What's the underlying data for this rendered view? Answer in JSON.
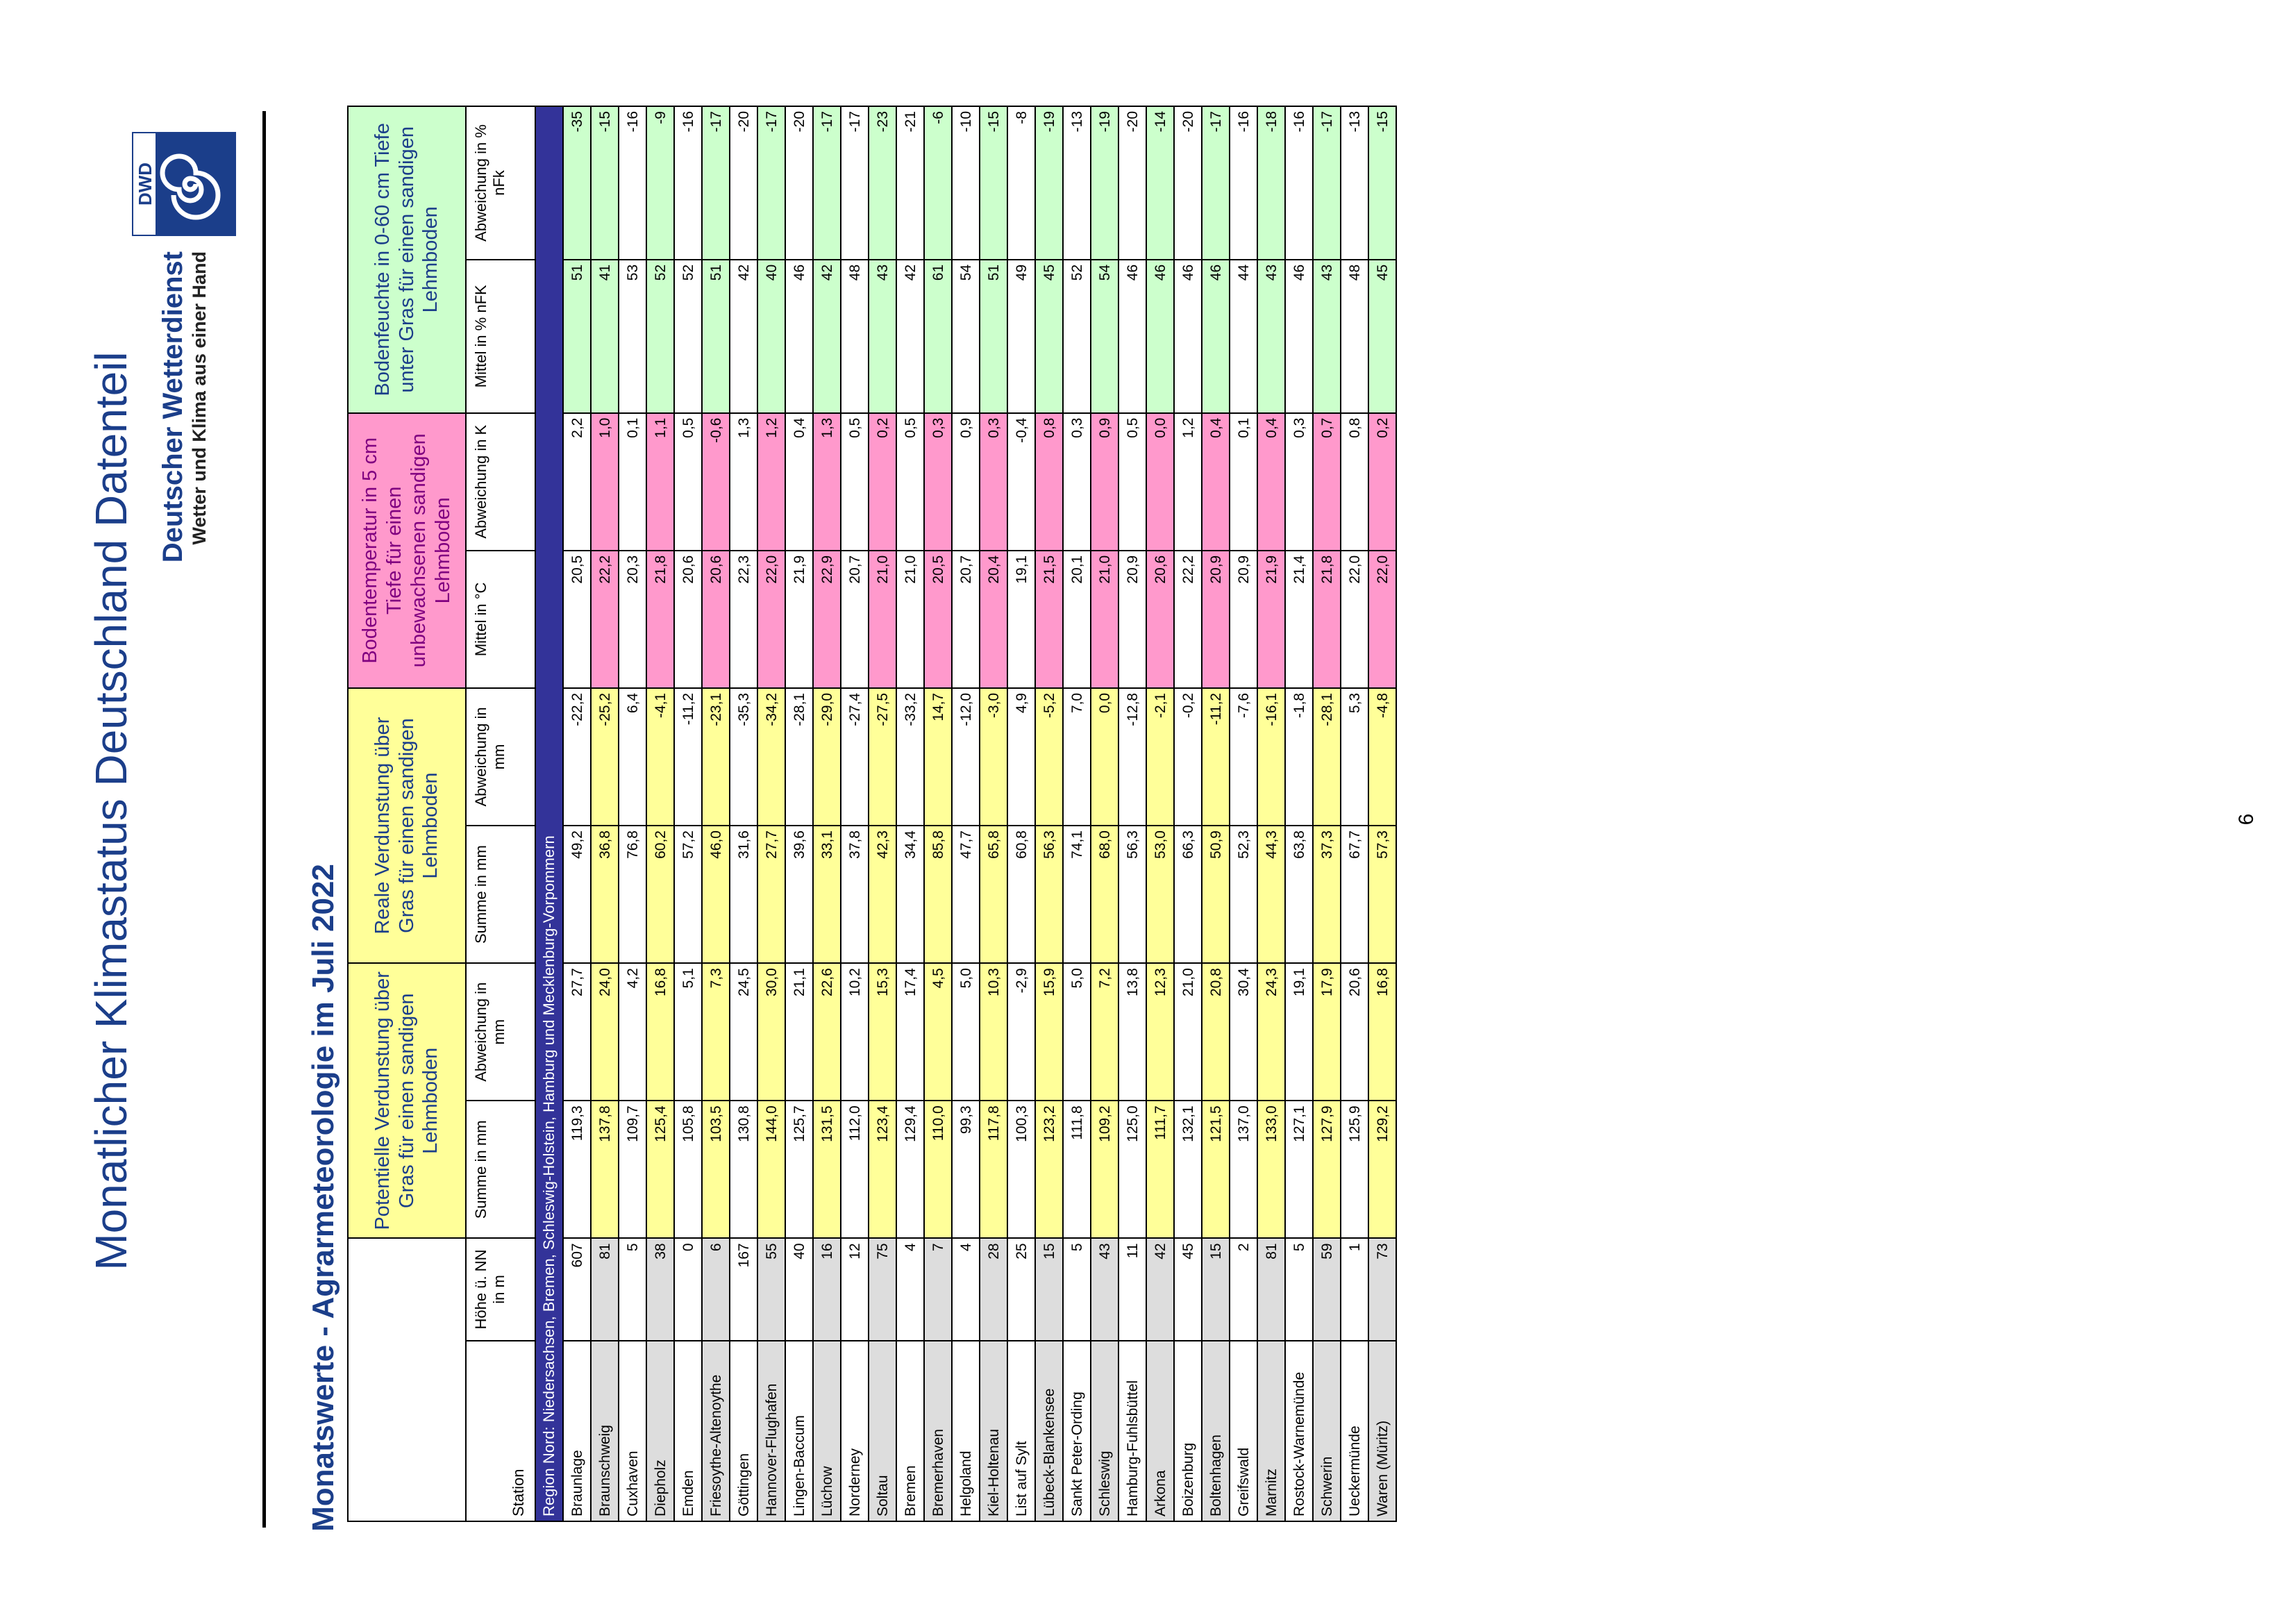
{
  "page": {
    "title": "Monatlicher Klimastatus Deutschland Datenteil",
    "section_title": "Monatswerte - Agrarmeteorologie im Juli 2022",
    "page_number": "6"
  },
  "logo": {
    "mark": "DWD",
    "name": "Deutscher Wetterdienst",
    "slogan": "Wetter und Klima aus einer Hand",
    "icon": "dwd-swirl-icon",
    "color": "#1b3e8a"
  },
  "table": {
    "groups": {
      "pot": "Potentielle Verdunstung über Gras für einen sandigen Lehmboden",
      "real": "Reale Verdunstung über Gras für einen sandigen Lehmboden",
      "temp": "Bodentemperatur in 5 cm Tiefe für einen unbewachsenen sandigen Lehmboden",
      "moist": "Bodenfeuchte in 0-60 cm Tiefe unter Gras für einen sandigen Lehmboden"
    },
    "columns": {
      "station": "Station",
      "hoehe": "Höhe ü. NN in m",
      "pot_sum": "Summe in mm",
      "pot_dev": "Abweichung in mm",
      "real_sum": "Summe in mm",
      "real_dev": "Abweichung in mm",
      "temp_mean": "Mittel in °C",
      "temp_dev": "Abweichung in K",
      "moist_mean": "Mittel in % nFK",
      "moist_dev": "Abweichung in % nFk"
    },
    "region": "Region Nord: Niedersachsen, Bremen, Schleswig-Holstein, Hamburg und Mecklenburg-Vorpommern",
    "colors": {
      "yellow": "#ffff99",
      "pink": "#ff99cc",
      "green": "#ccffcc",
      "gray": "#dddddd",
      "region": "#333399"
    },
    "rows": [
      {
        "station": "Braunlage",
        "h": "607",
        "hl": false,
        "ps": "119,3",
        "pd": "27,7",
        "rs": "49,2",
        "rd": "-22,2",
        "tm": "20,5",
        "td": "2,2",
        "mm": "51",
        "md": "-35",
        "c": [
          "w",
          "w",
          "w",
          "w",
          "w",
          "w",
          "g",
          "g"
        ]
      },
      {
        "station": "Braunschweig",
        "h": "81",
        "hl": true,
        "ps": "137,8",
        "pd": "24,0",
        "rs": "36,8",
        "rd": "-25,2",
        "tm": "22,2",
        "td": "1,0",
        "mm": "41",
        "md": "-15",
        "c": [
          "y",
          "y",
          "y",
          "y",
          "p",
          "p",
          "g",
          "g"
        ]
      },
      {
        "station": "Cuxhaven",
        "h": "5",
        "hl": false,
        "ps": "109,7",
        "pd": "4,2",
        "rs": "76,8",
        "rd": "6,4",
        "tm": "20,3",
        "td": "0,1",
        "mm": "53",
        "md": "-16",
        "c": [
          "w",
          "w",
          "w",
          "w",
          "w",
          "w",
          "w",
          "w"
        ]
      },
      {
        "station": "Diepholz",
        "h": "38",
        "hl": true,
        "ps": "125,4",
        "pd": "16,8",
        "rs": "60,2",
        "rd": "-4,1",
        "tm": "21,8",
        "td": "1,1",
        "mm": "52",
        "md": "-9",
        "c": [
          "y",
          "y",
          "y",
          "y",
          "p",
          "p",
          "g",
          "g"
        ]
      },
      {
        "station": "Emden",
        "h": "0",
        "hl": false,
        "ps": "105,8",
        "pd": "5,1",
        "rs": "57,2",
        "rd": "-11,2",
        "tm": "20,6",
        "td": "0,5",
        "mm": "52",
        "md": "-16",
        "c": [
          "w",
          "w",
          "w",
          "w",
          "w",
          "w",
          "w",
          "w"
        ]
      },
      {
        "station": "Friesoythe-Altenoythe",
        "h": "6",
        "hl": true,
        "ps": "103,5",
        "pd": "7,3",
        "rs": "46,0",
        "rd": "-23,1",
        "tm": "20,6",
        "td": "-0,6",
        "mm": "51",
        "md": "-17",
        "c": [
          "y",
          "y",
          "y",
          "y",
          "p",
          "p",
          "g",
          "g"
        ]
      },
      {
        "station": "Göttingen",
        "h": "167",
        "hl": false,
        "ps": "130,8",
        "pd": "24,5",
        "rs": "31,6",
        "rd": "-35,3",
        "tm": "22,3",
        "td": "1,3",
        "mm": "42",
        "md": "-20",
        "c": [
          "w",
          "w",
          "w",
          "w",
          "w",
          "w",
          "w",
          "w"
        ]
      },
      {
        "station": "Hannover-Flughafen",
        "h": "55",
        "hl": true,
        "ps": "144,0",
        "pd": "30,0",
        "rs": "27,7",
        "rd": "-34,2",
        "tm": "22,0",
        "td": "1,2",
        "mm": "40",
        "md": "-17",
        "c": [
          "y",
          "y",
          "y",
          "y",
          "p",
          "p",
          "g",
          "g"
        ]
      },
      {
        "station": "Lingen-Baccum",
        "h": "40",
        "hl": false,
        "ps": "125,7",
        "pd": "21,1",
        "rs": "39,6",
        "rd": "-28,1",
        "tm": "21,9",
        "td": "0,4",
        "mm": "46",
        "md": "-20",
        "c": [
          "w",
          "w",
          "w",
          "w",
          "w",
          "w",
          "w",
          "w"
        ]
      },
      {
        "station": "Lüchow",
        "h": "16",
        "hl": true,
        "ps": "131,5",
        "pd": "22,6",
        "rs": "33,1",
        "rd": "-29,0",
        "tm": "22,9",
        "td": "1,3",
        "mm": "42",
        "md": "-17",
        "c": [
          "y",
          "y",
          "y",
          "y",
          "p",
          "p",
          "g",
          "g"
        ]
      },
      {
        "station": "Norderney",
        "h": "12",
        "hl": false,
        "ps": "112,0",
        "pd": "10,2",
        "rs": "37,8",
        "rd": "-27,4",
        "tm": "20,7",
        "td": "0,5",
        "mm": "48",
        "md": "-17",
        "c": [
          "w",
          "w",
          "w",
          "w",
          "w",
          "w",
          "w",
          "w"
        ]
      },
      {
        "station": "Soltau",
        "h": "75",
        "hl": true,
        "ps": "123,4",
        "pd": "15,3",
        "rs": "42,3",
        "rd": "-27,5",
        "tm": "21,0",
        "td": "0,2",
        "mm": "43",
        "md": "-23",
        "c": [
          "y",
          "y",
          "y",
          "y",
          "p",
          "p",
          "g",
          "g"
        ]
      },
      {
        "station": "Bremen",
        "h": "4",
        "hl": false,
        "ps": "129,4",
        "pd": "17,4",
        "rs": "34,4",
        "rd": "-33,2",
        "tm": "21,0",
        "td": "0,5",
        "mm": "42",
        "md": "-21",
        "c": [
          "w",
          "w",
          "w",
          "w",
          "w",
          "w",
          "w",
          "w"
        ]
      },
      {
        "station": "Bremerhaven",
        "h": "7",
        "hl": true,
        "ps": "110,0",
        "pd": "4,5",
        "rs": "85,8",
        "rd": "14,7",
        "tm": "20,5",
        "td": "0,3",
        "mm": "61",
        "md": "-6",
        "c": [
          "y",
          "y",
          "y",
          "y",
          "p",
          "p",
          "g",
          "g"
        ]
      },
      {
        "station": "Helgoland",
        "h": "4",
        "hl": false,
        "ps": "99,3",
        "pd": "5,0",
        "rs": "47,7",
        "rd": "-12,0",
        "tm": "20,7",
        "td": "0,9",
        "mm": "54",
        "md": "-10",
        "c": [
          "w",
          "w",
          "w",
          "w",
          "w",
          "w",
          "w",
          "w"
        ]
      },
      {
        "station": "Kiel-Holtenau",
        "h": "28",
        "hl": true,
        "ps": "117,8",
        "pd": "10,3",
        "rs": "65,8",
        "rd": "-3,0",
        "tm": "20,4",
        "td": "0,3",
        "mm": "51",
        "md": "-15",
        "c": [
          "y",
          "y",
          "y",
          "y",
          "p",
          "p",
          "g",
          "g"
        ]
      },
      {
        "station": "List auf Sylt",
        "h": "25",
        "hl": false,
        "ps": "100,3",
        "pd": "-2,9",
        "rs": "60,8",
        "rd": "4,9",
        "tm": "19,1",
        "td": "-0,4",
        "mm": "49",
        "md": "-8",
        "c": [
          "w",
          "w",
          "w",
          "w",
          "w",
          "w",
          "w",
          "w"
        ]
      },
      {
        "station": "Lübeck-Blankensee",
        "h": "15",
        "hl": true,
        "ps": "123,2",
        "pd": "15,9",
        "rs": "56,3",
        "rd": "-5,2",
        "tm": "21,5",
        "td": "0,8",
        "mm": "45",
        "md": "-19",
        "c": [
          "y",
          "y",
          "y",
          "y",
          "p",
          "p",
          "g",
          "g"
        ]
      },
      {
        "station": "Sankt Peter-Ording",
        "h": "5",
        "hl": false,
        "ps": "111,8",
        "pd": "5,0",
        "rs": "74,1",
        "rd": "7,0",
        "tm": "20,1",
        "td": "0,3",
        "mm": "52",
        "md": "-13",
        "c": [
          "w",
          "w",
          "w",
          "w",
          "w",
          "w",
          "w",
          "w"
        ]
      },
      {
        "station": "Schleswig",
        "h": "43",
        "hl": true,
        "ps": "109,2",
        "pd": "7,2",
        "rs": "68,0",
        "rd": "0,0",
        "tm": "21,0",
        "td": "0,9",
        "mm": "54",
        "md": "-19",
        "c": [
          "y",
          "y",
          "y",
          "y",
          "p",
          "p",
          "g",
          "g"
        ]
      },
      {
        "station": "Hamburg-Fuhlsbüttel",
        "h": "11",
        "hl": false,
        "ps": "125,0",
        "pd": "13,8",
        "rs": "56,3",
        "rd": "-12,8",
        "tm": "20,9",
        "td": "0,5",
        "mm": "46",
        "md": "-20",
        "c": [
          "w",
          "w",
          "w",
          "w",
          "w",
          "w",
          "w",
          "w"
        ]
      },
      {
        "station": "Arkona",
        "h": "42",
        "hl": true,
        "ps": "111,7",
        "pd": "12,3",
        "rs": "53,0",
        "rd": "-2,1",
        "tm": "20,6",
        "td": "0,0",
        "mm": "46",
        "md": "-14",
        "c": [
          "y",
          "y",
          "y",
          "y",
          "p",
          "p",
          "g",
          "g"
        ]
      },
      {
        "station": "Boizenburg",
        "h": "45",
        "hl": false,
        "ps": "132,1",
        "pd": "21,0",
        "rs": "66,3",
        "rd": "-0,2",
        "tm": "22,2",
        "td": "1,2",
        "mm": "46",
        "md": "-20",
        "c": [
          "w",
          "w",
          "w",
          "w",
          "w",
          "w",
          "w",
          "w"
        ]
      },
      {
        "station": "Boltenhagen",
        "h": "15",
        "hl": true,
        "ps": "121,5",
        "pd": "20,8",
        "rs": "50,9",
        "rd": "-11,2",
        "tm": "20,9",
        "td": "0,4",
        "mm": "46",
        "md": "-17",
        "c": [
          "y",
          "y",
          "y",
          "y",
          "p",
          "p",
          "g",
          "g"
        ]
      },
      {
        "station": "Greifswald",
        "h": "2",
        "hl": false,
        "ps": "137,0",
        "pd": "30,4",
        "rs": "52,3",
        "rd": "-7,6",
        "tm": "20,9",
        "td": "0,1",
        "mm": "44",
        "md": "-16",
        "c": [
          "w",
          "w",
          "w",
          "w",
          "w",
          "w",
          "w",
          "w"
        ]
      },
      {
        "station": "Marnitz",
        "h": "81",
        "hl": true,
        "ps": "133,0",
        "pd": "24,3",
        "rs": "44,3",
        "rd": "-16,1",
        "tm": "21,9",
        "td": "0,4",
        "mm": "43",
        "md": "-18",
        "c": [
          "y",
          "y",
          "y",
          "y",
          "p",
          "p",
          "g",
          "g"
        ]
      },
      {
        "station": "Rostock-Warnemünde",
        "h": "5",
        "hl": false,
        "ps": "127,1",
        "pd": "19,1",
        "rs": "63,8",
        "rd": "-1,8",
        "tm": "21,4",
        "td": "0,3",
        "mm": "46",
        "md": "-16",
        "c": [
          "w",
          "w",
          "w",
          "w",
          "w",
          "w",
          "w",
          "w"
        ]
      },
      {
        "station": "Schwerin",
        "h": "59",
        "hl": true,
        "ps": "127,9",
        "pd": "17,9",
        "rs": "37,3",
        "rd": "-28,1",
        "tm": "21,8",
        "td": "0,7",
        "mm": "43",
        "md": "-17",
        "c": [
          "y",
          "y",
          "y",
          "y",
          "p",
          "p",
          "g",
          "g"
        ]
      },
      {
        "station": "Ueckermünde",
        "h": "1",
        "hl": false,
        "ps": "125,9",
        "pd": "20,6",
        "rs": "67,7",
        "rd": "5,3",
        "tm": "22,0",
        "td": "0,8",
        "mm": "48",
        "md": "-13",
        "c": [
          "w",
          "w",
          "w",
          "w",
          "w",
          "w",
          "w",
          "w"
        ]
      },
      {
        "station": "Waren (Müritz)",
        "h": "73",
        "hl": true,
        "ps": "129,2",
        "pd": "16,8",
        "rs": "57,3",
        "rd": "-4,8",
        "tm": "22,0",
        "td": "0,2",
        "mm": "45",
        "md": "-15",
        "c": [
          "y",
          "y",
          "y",
          "y",
          "p",
          "p",
          "g",
          "g"
        ]
      }
    ]
  }
}
